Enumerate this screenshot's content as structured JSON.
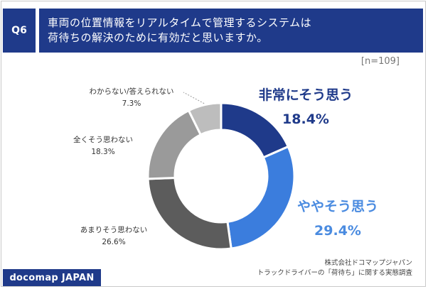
{
  "question": {
    "number": "Q6",
    "text_lines": [
      "車両の位置情報をリアルタイムで管理するシステムは",
      "荷待ちの解決のために有効だと思いますか。"
    ]
  },
  "sample_size": "[n=109]",
  "chart_data": {
    "type": "pie",
    "donut": true,
    "categories": [
      "非常にそう思う",
      "ややそう思う",
      "あまりそう思わない",
      "全くそう思わない",
      "わからない/答えられない"
    ],
    "values": [
      18.4,
      29.4,
      26.6,
      18.3,
      7.3
    ],
    "value_labels": [
      "18.4%",
      "29.4%",
      "26.6%",
      "18.3%",
      "7.3%"
    ],
    "colors": [
      "#1f3a8a",
      "#3b7ddd",
      "#5c5c5c",
      "#9a9a9a",
      "#bdbdbd"
    ],
    "label_colors": [
      "#1f3a8a",
      "#4a8be0",
      "#333333",
      "#333333",
      "#333333"
    ],
    "start_angle_deg": 0,
    "direction": "clockwise"
  },
  "footer": {
    "logo": "docomap JAPAN",
    "source_lines": [
      "株式会社ドコマップジャパン",
      "トラックドライバーの「荷待ち」に関する実態調査"
    ]
  }
}
